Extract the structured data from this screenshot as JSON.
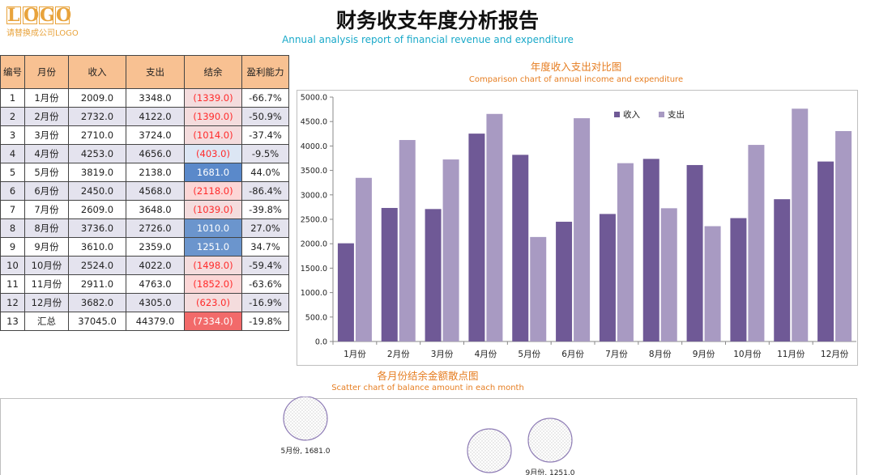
{
  "logo": {
    "mark": [
      "L",
      "O",
      "G",
      "O"
    ],
    "subtitle": "请替换成公司LOGO"
  },
  "report": {
    "title": "财务收支年度分析报告",
    "subtitle": "Annual analysis report of financial revenue and expenditure"
  },
  "table": {
    "headers": [
      "编号",
      "月份",
      "收入",
      "支出",
      "结余",
      "盈利能力"
    ],
    "rows": [
      [
        "1",
        "1月份",
        "2009.0",
        "3348.0",
        "(1339.0)",
        "-66.7%"
      ],
      [
        "2",
        "2月份",
        "2732.0",
        "4122.0",
        "(1390.0)",
        "-50.9%"
      ],
      [
        "3",
        "3月份",
        "2710.0",
        "3724.0",
        "(1014.0)",
        "-37.4%"
      ],
      [
        "4",
        "4月份",
        "4253.0",
        "4656.0",
        "(403.0)",
        "-9.5%"
      ],
      [
        "5",
        "5月份",
        "3819.0",
        "2138.0",
        "1681.0",
        "44.0%"
      ],
      [
        "6",
        "6月份",
        "2450.0",
        "4568.0",
        "(2118.0)",
        "-86.4%"
      ],
      [
        "7",
        "7月份",
        "2609.0",
        "3648.0",
        "(1039.0)",
        "-39.8%"
      ],
      [
        "8",
        "8月份",
        "3736.0",
        "2726.0",
        "1010.0",
        "27.0%"
      ],
      [
        "9",
        "9月份",
        "3610.0",
        "2359.0",
        "1251.0",
        "34.7%"
      ],
      [
        "10",
        "10月份",
        "2524.0",
        "4022.0",
        "(1498.0)",
        "-59.4%"
      ],
      [
        "11",
        "11月份",
        "2911.0",
        "4763.0",
        "(1852.0)",
        "-63.6%"
      ],
      [
        "12",
        "12月份",
        "3682.0",
        "4305.0",
        "(623.0)",
        "-16.9%"
      ],
      [
        "13",
        "汇总",
        "37045.0",
        "44379.0",
        "(7334.0)",
        "-19.8%"
      ]
    ],
    "colors": {
      "header_bg": "#F8C192",
      "negative_text": "#FF2B2B",
      "positive_bg": "#6B95CD",
      "total_negative_bg": "#F26A6A"
    }
  },
  "chart_data": [
    {
      "type": "bar",
      "title": "年度收入支出对比图",
      "subtitle": "Comparison chart of annual income and expenditure",
      "categories": [
        "1月份",
        "2月份",
        "3月份",
        "4月份",
        "5月份",
        "6月份",
        "7月份",
        "8月份",
        "9月份",
        "10月份",
        "11月份",
        "12月份"
      ],
      "series": [
        {
          "name": "收入",
          "values": [
            2009,
            2732,
            2710,
            4253,
            3819,
            2450,
            2609,
            3736,
            3610,
            2524,
            2911,
            3682
          ],
          "color": "#6F5996"
        },
        {
          "name": "支出",
          "values": [
            3348,
            4122,
            3724,
            4656,
            2138,
            4568,
            3648,
            2726,
            2359,
            4022,
            4763,
            4305
          ],
          "color": "#A89AC2"
        }
      ],
      "ylim": [
        0,
        5000
      ],
      "yticks": [
        "0.0",
        "500.0",
        "1000.0",
        "1500.0",
        "2000.0",
        "2500.0",
        "3000.0",
        "3500.0",
        "4000.0",
        "4500.0",
        "5000.0"
      ],
      "grid": false,
      "legend": "top-right"
    },
    {
      "type": "scatter",
      "title": "各月份结余金额散点图",
      "subtitle": "Scatter chart of balance amount in each month",
      "points": [
        {
          "x": "5月份",
          "y": 1681.0,
          "label": "5月份, 1681.0"
        },
        {
          "x": "8月份",
          "y": 1010.0,
          "label": ""
        },
        {
          "x": "9月份",
          "y": 1251.0,
          "label": "9月份, 1251.0"
        }
      ]
    }
  ]
}
